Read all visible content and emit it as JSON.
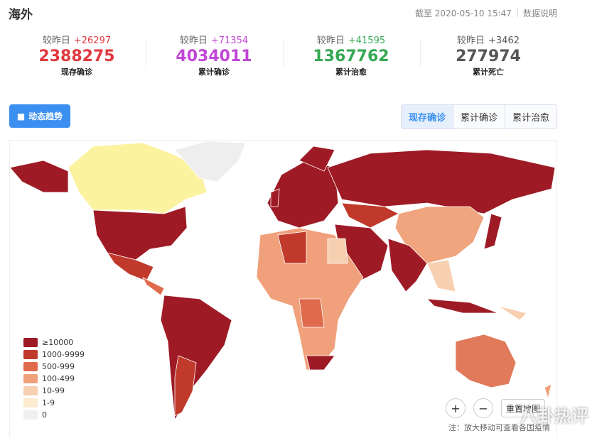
{
  "header": {
    "title": "海外",
    "timestamp": "截至 2020-05-10 15:47",
    "info_link": "数据说明"
  },
  "stats": [
    {
      "label": "较昨日",
      "delta": "+26297",
      "value": "2388275",
      "caption": "现存确诊",
      "color": "#e0393e"
    },
    {
      "label": "较昨日",
      "delta": "+71354",
      "value": "4034011",
      "caption": "累计确诊",
      "color": "#c146d6"
    },
    {
      "label": "较昨日",
      "delta": "+41595",
      "value": "1367762",
      "caption": "累计治愈",
      "color": "#34a853"
    },
    {
      "label": "较昨日",
      "delta": "+3462",
      "value": "277974",
      "caption": "累计死亡",
      "color": "#555555"
    }
  ],
  "trend_button": "动态趋势",
  "tabs": [
    {
      "label": "现存确诊",
      "active": true
    },
    {
      "label": "累计确诊",
      "active": false
    },
    {
      "label": "累计治愈",
      "active": false
    }
  ],
  "legend": [
    {
      "label": "≥10000",
      "color": "#9e1b25"
    },
    {
      "label": "1000-9999",
      "color": "#c0392b"
    },
    {
      "label": "500-999",
      "color": "#e06a4c"
    },
    {
      "label": "100-499",
      "color": "#f0a17c"
    },
    {
      "label": "10-99",
      "color": "#f7cfb1"
    },
    {
      "label": "1-9",
      "color": "#fcebcf"
    },
    {
      "label": "0",
      "color": "#f0f0f0"
    }
  ],
  "map_controls": {
    "zoom_in": "+",
    "zoom_out": "−",
    "reset": "重置地图"
  },
  "note": "注：放大移动可查看各国疫情",
  "watermark": "八卦热评"
}
